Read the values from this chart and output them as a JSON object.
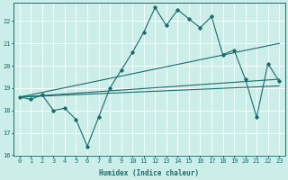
{
  "title": "",
  "xlabel": "Humidex (Indice chaleur)",
  "ylabel": "",
  "bg_color": "#cceee8",
  "line_color": "#1a6b6b",
  "xlim": [
    -0.5,
    23.5
  ],
  "ylim": [
    16,
    22.8
  ],
  "yticks": [
    16,
    17,
    18,
    19,
    20,
    21,
    22
  ],
  "xticks": [
    0,
    1,
    2,
    3,
    4,
    5,
    6,
    7,
    8,
    9,
    10,
    11,
    12,
    13,
    14,
    15,
    16,
    17,
    18,
    19,
    20,
    21,
    22,
    23
  ],
  "series": {
    "zigzag": {
      "x": [
        0,
        1,
        2,
        3,
        4,
        5,
        6,
        7,
        8,
        9,
        10,
        11,
        12,
        13,
        14,
        15,
        16,
        17,
        18,
        19,
        20,
        21,
        22,
        23
      ],
      "y": [
        18.6,
        18.5,
        18.7,
        18.0,
        18.1,
        17.6,
        16.4,
        17.7,
        19.0,
        19.8,
        20.6,
        21.5,
        22.6,
        21.8,
        22.5,
        22.1,
        21.7,
        22.2,
        20.5,
        20.7,
        19.4,
        17.7,
        20.1,
        19.3
      ]
    },
    "line_top": {
      "x": [
        0,
        23
      ],
      "y": [
        18.6,
        21.0
      ]
    },
    "line_mid": {
      "x": [
        0,
        23
      ],
      "y": [
        18.6,
        19.4
      ]
    },
    "line_low": {
      "x": [
        0,
        23
      ],
      "y": [
        18.6,
        19.1
      ]
    }
  }
}
